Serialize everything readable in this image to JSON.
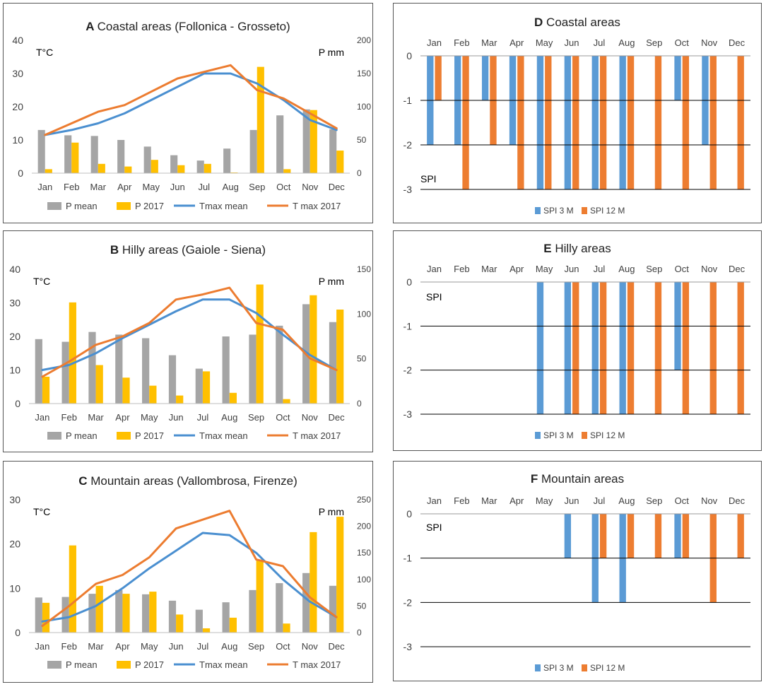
{
  "colors": {
    "p_mean": "#a5a5a5",
    "p_2017": "#ffc000",
    "tmax_mean": "#4a8fd0",
    "tmax_2017": "#ec7c30",
    "spi3": "#5b9bd5",
    "spi12": "#ed7d31",
    "axis": "#8c8c8c",
    "grid": "#000000",
    "text": "#404040"
  },
  "chart_data": [
    {
      "id": "A",
      "type": "bar+line",
      "letter": "A",
      "title": "Coastal areas (Follonica - Grosseto)",
      "left_unit_label": "T°C",
      "right_unit_label": "P mm",
      "categories": [
        "Jan",
        "Feb",
        "Mar",
        "Apr",
        "May",
        "Jun",
        "Jul",
        "Aug",
        "Sep",
        "Oct",
        "Nov",
        "Dec"
      ],
      "left_ylim": [
        0,
        40
      ],
      "left_ticks": [
        0,
        10,
        20,
        30,
        40
      ],
      "right_ylim": [
        0,
        200
      ],
      "right_ticks": [
        0,
        50,
        100,
        150,
        200
      ],
      "bar_series": [
        {
          "name": "P mean",
          "values": [
            65,
            57,
            56,
            50,
            40,
            27,
            19,
            37,
            65,
            87,
            96,
            66
          ]
        },
        {
          "name": "P 2017",
          "values": [
            6,
            46,
            14,
            10,
            20,
            12,
            14,
            1,
            160,
            6,
            95,
            34
          ]
        }
      ],
      "line_series": [
        {
          "name": "Tmax mean",
          "values": [
            11.5,
            13,
            15,
            18,
            22,
            26,
            30,
            30,
            27,
            22,
            16,
            13
          ]
        },
        {
          "name": "T max 2017",
          "values": [
            11.5,
            15,
            18.5,
            20.5,
            24.5,
            28.5,
            30.5,
            32.5,
            25,
            22.5,
            18,
            13.5
          ]
        }
      ],
      "legend": [
        "P mean",
        "P 2017",
        "Tmax mean",
        "T max 2017"
      ]
    },
    {
      "id": "B",
      "type": "bar+line",
      "letter": "B",
      "title": "Hilly areas (Gaiole - Siena)",
      "left_unit_label": "T°C",
      "right_unit_label": "P mm",
      "categories": [
        "Jan",
        "Feb",
        "Mar",
        "Apr",
        "May",
        "Jun",
        "Jul",
        "Aug",
        "Sep",
        "Oct",
        "Nov",
        "Dec"
      ],
      "left_ylim": [
        0,
        40
      ],
      "left_ticks": [
        0,
        10,
        20,
        30,
        40
      ],
      "right_ylim": [
        0,
        150
      ],
      "right_ticks": [
        0,
        50,
        100,
        150
      ],
      "bar_series": [
        {
          "name": "P mean",
          "values": [
            72,
            69,
            80,
            77,
            73,
            54,
            39,
            75,
            77,
            87,
            111,
            91
          ]
        },
        {
          "name": "P 2017",
          "values": [
            30,
            113,
            43,
            29,
            20,
            9,
            36,
            12,
            133,
            5,
            121,
            105
          ]
        }
      ],
      "line_series": [
        {
          "name": "Tmax mean",
          "values": [
            10,
            11.5,
            15,
            19.5,
            23.5,
            27.5,
            31,
            31,
            27,
            20.5,
            14.5,
            10
          ]
        },
        {
          "name": "T max 2017",
          "values": [
            8,
            12.5,
            17.5,
            20,
            24,
            31,
            32.5,
            34.5,
            24,
            22,
            13.5,
            10
          ]
        }
      ],
      "legend": [
        "P mean",
        "P 2017",
        "Tmax mean",
        "T max 2017"
      ]
    },
    {
      "id": "C",
      "type": "bar+line",
      "letter": "C",
      "title": "Mountain areas (Vallombrosa, Firenze)",
      "left_unit_label": "T°C",
      "right_unit_label": "P mm",
      "categories": [
        "Jan",
        "Feb",
        "Mar",
        "Apr",
        "May",
        "Jun",
        "Jul",
        "Aug",
        "Sep",
        "Oct",
        "Nov",
        "Dec"
      ],
      "left_ylim": [
        0,
        30
      ],
      "left_ticks": [
        0,
        10,
        20,
        30
      ],
      "right_ylim": [
        0,
        250
      ],
      "right_ticks": [
        0,
        50,
        100,
        150,
        200,
        250
      ],
      "bar_series": [
        {
          "name": "P mean",
          "values": [
            66,
            67,
            73,
            80,
            72,
            60,
            43,
            57,
            80,
            93,
            112,
            88
          ]
        },
        {
          "name": "P 2017",
          "values": [
            56,
            164,
            88,
            73,
            77,
            34,
            8,
            28,
            137,
            17,
            189,
            218
          ]
        }
      ],
      "line_series": [
        {
          "name": "Tmax mean",
          "values": [
            2.5,
            3.5,
            6,
            10,
            14.5,
            18.5,
            22.5,
            22,
            18,
            12,
            7,
            3.5
          ]
        },
        {
          "name": "T max 2017",
          "values": [
            1.5,
            6,
            11,
            13,
            17,
            23.5,
            25.5,
            27.5,
            16.5,
            15,
            8,
            3.5
          ]
        }
      ],
      "legend": [
        "P mean",
        "P 2017",
        "Tmax mean",
        "T max 2017"
      ]
    },
    {
      "id": "D",
      "type": "bar",
      "letter": "D",
      "title": "Coastal areas",
      "y_unit_label": "SPI",
      "categories": [
        "Jan",
        "Feb",
        "Mar",
        "Apr",
        "May",
        "Jun",
        "Jul",
        "Aug",
        "Sep",
        "Oct",
        "Nov",
        "Dec"
      ],
      "ylim": [
        -3,
        0
      ],
      "ticks": [
        0,
        -1,
        -2,
        -3
      ],
      "series": [
        {
          "name": "SPI 3 M",
          "values": [
            -2,
            -2,
            -1,
            -2,
            -3,
            -3,
            -3,
            -3,
            0,
            -1,
            -2,
            0
          ]
        },
        {
          "name": "SPI 12 M",
          "values": [
            -1,
            -3,
            -2,
            -3,
            -3,
            -3,
            -3,
            -3,
            -3,
            -3,
            -3,
            -3
          ]
        }
      ],
      "legend": [
        "SPI 3 M",
        "SPI 12 M"
      ]
    },
    {
      "id": "E",
      "type": "bar",
      "letter": "E",
      "title": "Hilly areas",
      "y_unit_label": "SPI",
      "categories": [
        "Jan",
        "Feb",
        "Mar",
        "Apr",
        "May",
        "Jun",
        "Jul",
        "Aug",
        "Sep",
        "Oct",
        "Nov",
        "Dec"
      ],
      "ylim": [
        -3,
        0
      ],
      "ticks": [
        0,
        -1,
        -2,
        -3
      ],
      "series": [
        {
          "name": "SPI 3 M",
          "values": [
            0,
            0,
            0,
            0,
            -3,
            -3,
            -3,
            -3,
            0,
            -2,
            0,
            0
          ]
        },
        {
          "name": "SPI 12 M",
          "values": [
            0,
            0,
            0,
            0,
            0,
            -3,
            -3,
            -3,
            -3,
            -3,
            -3,
            -3
          ]
        }
      ],
      "legend": [
        "SPI 3 M",
        "SPI 12 M"
      ]
    },
    {
      "id": "F",
      "type": "bar",
      "letter": "F",
      "title": "Mountain areas",
      "y_unit_label": "SPI",
      "categories": [
        "Jan",
        "Feb",
        "Mar",
        "Apr",
        "May",
        "Jun",
        "Jul",
        "Aug",
        "Sep",
        "Oct",
        "Nov",
        "Dec"
      ],
      "ylim": [
        -3,
        0
      ],
      "ticks": [
        0,
        -1,
        -2,
        -3
      ],
      "series": [
        {
          "name": "SPI 3 M",
          "values": [
            0,
            0,
            0,
            0,
            0,
            -1,
            -2,
            -2,
            0,
            -1,
            0,
            0
          ]
        },
        {
          "name": "SPI 12 M",
          "values": [
            0,
            0,
            0,
            0,
            0,
            0,
            -1,
            -1,
            -1,
            -1,
            -2,
            -1
          ]
        }
      ],
      "legend": [
        "SPI 3 M",
        "SPI 12 M"
      ]
    }
  ]
}
